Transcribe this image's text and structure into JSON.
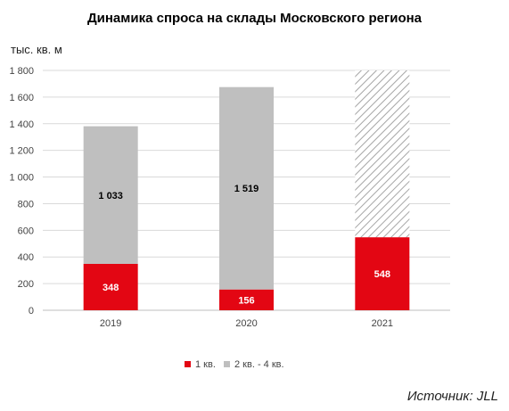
{
  "chart_data": {
    "type": "bar",
    "stacked": true,
    "title": "Динамика спроса на склады Московского региона",
    "ylabel": "тыс. кв. м",
    "categories": [
      "2019",
      "2020",
      "2021"
    ],
    "ylim": [
      0,
      1800
    ],
    "yticks": [
      0,
      200,
      400,
      600,
      800,
      1000,
      1200,
      1400,
      1600,
      1800
    ],
    "ytick_labels": [
      "0",
      "200",
      "400",
      "600",
      "800",
      "1 000",
      "1 200",
      "1 400",
      "1 600",
      "1 800"
    ],
    "grid": true,
    "legend_position": "bottom",
    "series": [
      {
        "name": "1 кв.",
        "values": [
          348,
          156,
          548
        ],
        "labels": [
          "348",
          "156",
          "548"
        ],
        "color": "#e30613",
        "label_color": "#ffffff"
      },
      {
        "name": "2 кв. - 4 кв.",
        "values": [
          1033,
          1519,
          1252
        ],
        "labels": [
          "1 033",
          "1 519",
          ""
        ],
        "color": "#bfbfbf",
        "label_color": "#000000",
        "forecast": [
          false,
          false,
          true
        ]
      }
    ]
  },
  "source": "Источник: JLL",
  "colors": {
    "grid": "#d9d9d9",
    "hatch": "#a6a6a6"
  }
}
